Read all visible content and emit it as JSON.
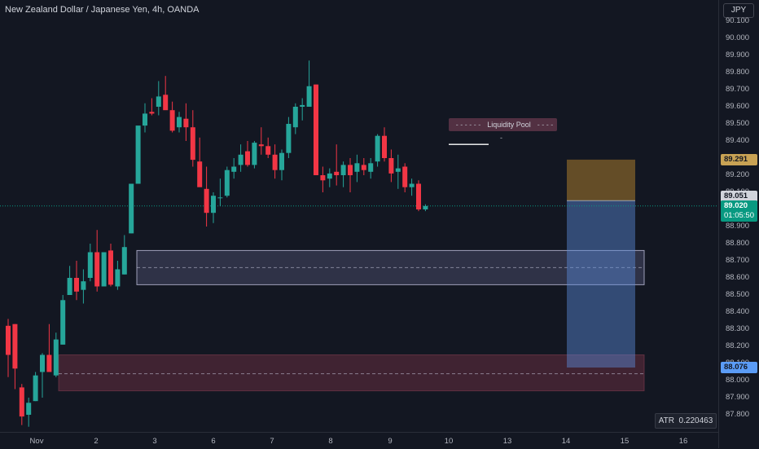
{
  "chart_title": "New Zealand Dollar / Japanese Yen, 4h, OANDA",
  "currency": "JPY",
  "price_ticks": [
    "90.100",
    "90.000",
    "89.900",
    "89.800",
    "89.700",
    "89.600",
    "89.500",
    "89.400",
    "89.300",
    "89.200",
    "89.100",
    "89.000",
    "88.900",
    "88.800",
    "88.700",
    "88.600",
    "88.500",
    "88.400",
    "88.300",
    "88.200",
    "88.100",
    "88.000",
    "87.900",
    "87.800"
  ],
  "time_labels": [
    "Nov",
    "2",
    "3",
    "6",
    "7",
    "8",
    "9",
    "10",
    "13",
    "14",
    "15",
    "16"
  ],
  "tags": {
    "target": "89.291",
    "entry": "89.051",
    "current_price": "89.020",
    "countdown": "01:05:50",
    "stop": "88.076"
  },
  "annotations": {
    "liquidity_pool": "Liquidity Pool"
  },
  "atr": {
    "label": "ATR",
    "value": "0.220463"
  },
  "colors": {
    "up": "#26a69a",
    "down": "#f23645",
    "background": "#131722"
  },
  "chart_data": {
    "type": "candlestick",
    "ohlc": [
      [
        88.32,
        88.36,
        88.02,
        88.15
      ],
      [
        88.33,
        88.33,
        87.95,
        88.07
      ],
      [
        87.96,
        87.98,
        87.74,
        87.79
      ],
      [
        87.8,
        87.9,
        87.73,
        87.87
      ],
      [
        87.88,
        88.05,
        87.88,
        88.03
      ],
      [
        88.05,
        88.16,
        87.9,
        88.15
      ],
      [
        88.15,
        88.33,
        88.05,
        88.05
      ],
      [
        88.03,
        88.28,
        88.02,
        88.24
      ],
      [
        88.21,
        88.5,
        88.21,
        88.47
      ],
      [
        88.5,
        88.67,
        88.5,
        88.6
      ],
      [
        88.6,
        88.7,
        88.47,
        88.52
      ],
      [
        88.53,
        88.65,
        88.45,
        88.58
      ],
      [
        88.6,
        88.8,
        88.58,
        88.75
      ],
      [
        88.75,
        88.88,
        88.52,
        88.55
      ],
      [
        88.55,
        88.75,
        88.55,
        88.75
      ],
      [
        88.76,
        88.8,
        88.55,
        88.56
      ],
      [
        88.55,
        88.7,
        88.53,
        88.65
      ],
      [
        88.62,
        88.85,
        88.62,
        88.78
      ],
      [
        88.86,
        89.15,
        88.86,
        89.15
      ],
      [
        89.15,
        89.47,
        89.15,
        89.49
      ],
      [
        89.49,
        89.62,
        89.45,
        89.56
      ],
      [
        89.57,
        89.65,
        89.55,
        89.56
      ],
      [
        89.6,
        89.75,
        89.55,
        89.66
      ],
      [
        89.67,
        89.78,
        89.6,
        89.58
      ],
      [
        89.58,
        89.63,
        89.45,
        89.46
      ],
      [
        89.48,
        89.57,
        89.45,
        89.54
      ],
      [
        89.53,
        89.62,
        89.4,
        89.48
      ],
      [
        89.48,
        89.58,
        89.25,
        89.29
      ],
      [
        89.28,
        89.42,
        89.15,
        89.13
      ],
      [
        89.12,
        89.25,
        88.9,
        88.98
      ],
      [
        88.98,
        89.1,
        88.92,
        89.08
      ],
      [
        89.07,
        89.18,
        89.02,
        89.07
      ],
      [
        89.08,
        89.25,
        89.07,
        89.23
      ],
      [
        89.22,
        89.3,
        89.18,
        89.25
      ],
      [
        89.26,
        89.38,
        89.22,
        89.32
      ],
      [
        89.34,
        89.4,
        89.25,
        89.26
      ],
      [
        89.26,
        89.4,
        89.24,
        89.39
      ],
      [
        89.38,
        89.48,
        89.32,
        89.37
      ],
      [
        89.37,
        89.42,
        89.3,
        89.32
      ],
      [
        89.32,
        89.38,
        89.18,
        89.23
      ],
      [
        89.23,
        89.35,
        89.17,
        89.33
      ],
      [
        89.33,
        89.54,
        89.3,
        89.5
      ],
      [
        89.48,
        89.62,
        89.44,
        89.6
      ],
      [
        89.6,
        89.65,
        89.52,
        89.61
      ],
      [
        89.6,
        89.87,
        89.6,
        89.72
      ],
      [
        89.73,
        89.73,
        89.22,
        89.2
      ],
      [
        89.2,
        89.25,
        89.1,
        89.17
      ],
      [
        89.18,
        89.24,
        89.13,
        89.21
      ],
      [
        89.22,
        89.38,
        89.14,
        89.2
      ],
      [
        89.2,
        89.28,
        89.13,
        89.26
      ],
      [
        89.26,
        89.3,
        89.1,
        89.2
      ],
      [
        89.22,
        89.32,
        89.16,
        89.27
      ],
      [
        89.26,
        89.3,
        89.2,
        89.23
      ],
      [
        89.22,
        89.3,
        89.18,
        89.27
      ],
      [
        89.28,
        89.44,
        89.25,
        89.43
      ],
      [
        89.43,
        89.48,
        89.28,
        89.3
      ],
      [
        89.3,
        89.35,
        89.16,
        89.21
      ],
      [
        89.22,
        89.32,
        89.12,
        89.24
      ],
      [
        89.25,
        89.27,
        89.1,
        89.13
      ],
      [
        89.13,
        89.18,
        89.08,
        89.15
      ],
      [
        89.15,
        89.17,
        88.99,
        89.0
      ],
      [
        89.0,
        89.03,
        88.99,
        89.02
      ]
    ],
    "zones": [
      {
        "name": "upper-demand-zone",
        "top": 88.76,
        "bottom": 88.56,
        "mid": 88.66
      },
      {
        "name": "lower-demand-zone",
        "top": 88.15,
        "bottom": 87.94,
        "mid": 88.04
      }
    ],
    "liquidity_line": 89.38,
    "current_price_line": 89.02,
    "position": {
      "entry": 89.051,
      "target": 89.291,
      "stop": 88.076
    }
  }
}
